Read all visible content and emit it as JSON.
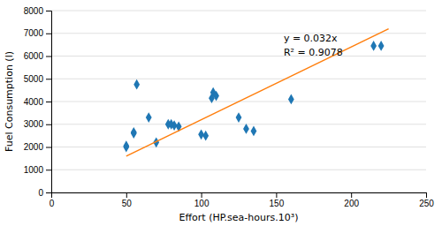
{
  "chart_data": {
    "type": "scatter",
    "xlabel": "Effort (HP.sea-hours.10³)",
    "ylabel": "Fuel Consumption (l)",
    "xlim": [
      0,
      250
    ],
    "ylim": [
      0,
      8000
    ],
    "xticks": [
      0,
      50,
      100,
      150,
      200,
      250
    ],
    "yticks": [
      0,
      1000,
      2000,
      3000,
      4000,
      5000,
      6000,
      7000,
      8000
    ],
    "grid": true,
    "series": [
      {
        "type": "scatter",
        "marker": "diamond",
        "x": [
          50,
          50,
          55,
          55,
          57,
          65,
          70,
          78,
          80,
          82,
          85,
          100,
          103,
          107,
          108,
          110,
          125,
          130,
          135,
          160,
          215,
          220
        ],
        "values": [
          2000,
          2050,
          2600,
          2650,
          4750,
          3300,
          2200,
          3000,
          3000,
          2950,
          2900,
          2550,
          2500,
          4150,
          4400,
          4250,
          3300,
          2800,
          2700,
          4100,
          6450,
          6450
        ]
      },
      {
        "type": "line",
        "line_style": "solid",
        "x": [
          50,
          225
        ],
        "values": [
          1600,
          7200
        ]
      }
    ],
    "annotations": [
      "y = 0.032x",
      "R² = 0.9078"
    ]
  }
}
